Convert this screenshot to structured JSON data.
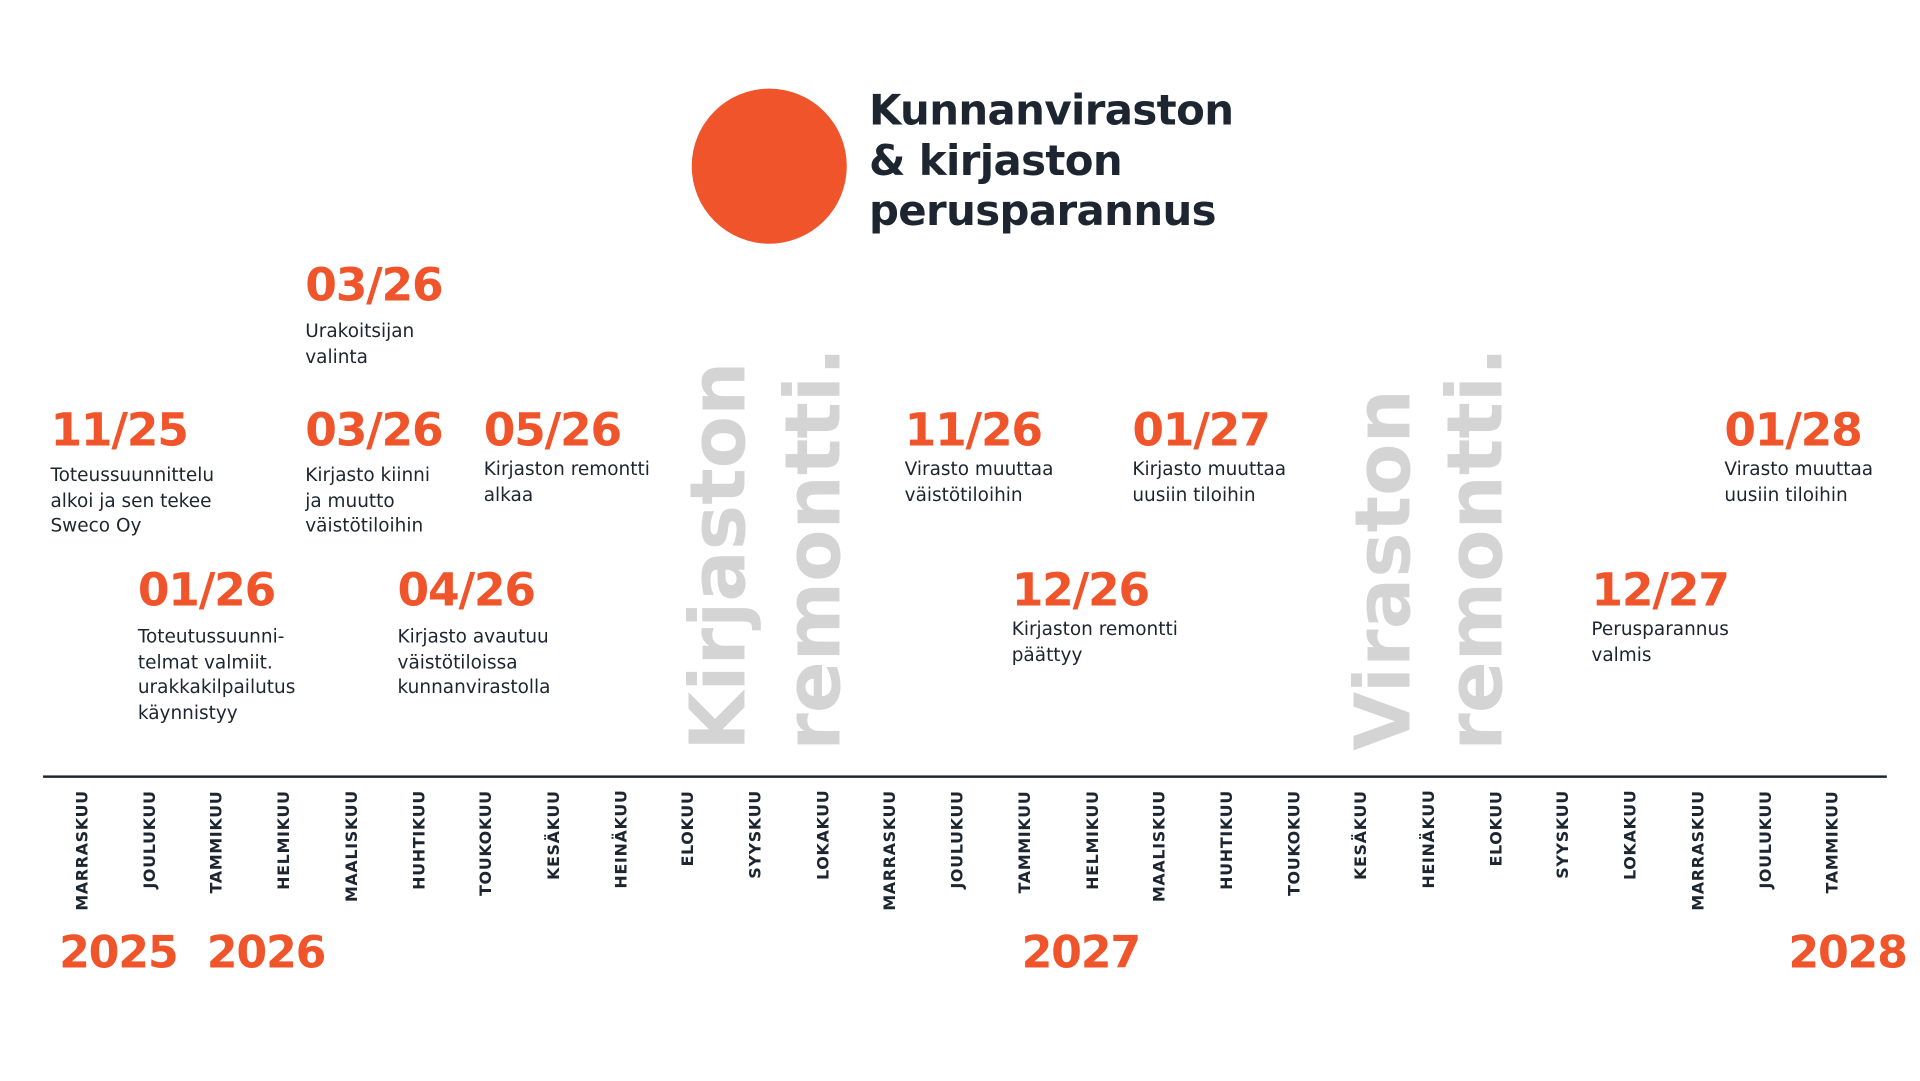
{
  "title": [
    "Kunnanviraston",
    "& kirjaston",
    "perusparannus"
  ],
  "colors": {
    "accent": "#f0542a",
    "text": "#1c2530",
    "phase": "#d4d4d4"
  },
  "events": [
    {
      "date": "11/25",
      "lines": [
        "Toteussuunnittelu",
        "alkoi ja sen tekee",
        "Sweco Oy"
      ]
    },
    {
      "date": "01/26",
      "lines": [
        "Toteutussuunni-",
        "telmat valmiit.",
        "urakkakilpailutus",
        "käynnistyy"
      ]
    },
    {
      "date": "03/26",
      "lines": [
        "Urakoitsijan",
        "valinta"
      ]
    },
    {
      "date": "03/26",
      "lines": [
        "Kirjasto kiinni",
        "ja muutto",
        "väistötiloihin"
      ]
    },
    {
      "date": "04/26",
      "lines": [
        "Kirjasto avautuu",
        "väistötiloissa",
        "kunnanvirastolla"
      ]
    },
    {
      "date": "05/26",
      "lines": [
        "Kirjaston remontti",
        "alkaa"
      ]
    },
    {
      "date": "11/26",
      "lines": [
        "Virasto muuttaa",
        "väistötiloihin"
      ]
    },
    {
      "date": "12/26",
      "lines": [
        "Kirjaston remontti",
        "päättyy"
      ]
    },
    {
      "date": "01/27",
      "lines": [
        "Kirjasto muuttaa",
        "uusiin tiloihin"
      ]
    },
    {
      "date": "12/27",
      "lines": [
        "Perusparannus",
        "valmis"
      ]
    },
    {
      "date": "01/28",
      "lines": [
        "Virasto muuttaa",
        "uusiin tiloihin"
      ]
    }
  ],
  "phases": [
    {
      "lines": [
        "Kirjaston",
        "remontti."
      ]
    },
    {
      "lines": [
        "Viraston",
        "remontti."
      ]
    }
  ],
  "months": [
    "MARRASKUU",
    "JOULUKUU",
    "TAMMIKUU",
    "HELMIKUU",
    "MAALISKUU",
    "HUHTIKUU",
    "TOUKOKUU",
    "KESÄKUU",
    "HEINÄKUU",
    "ELOKUU",
    "SYYSKUU",
    "LOKAKUU",
    "MARRASKUU",
    "JOULUKUU",
    "TAMMIKUU",
    "HELMIKUU",
    "MAALISKUU",
    "HUHTIKUU",
    "TOUKOKUU",
    "KESÄKUU",
    "HEINÄKUU",
    "ELOKUU",
    "SYYSKUU",
    "LOKAKUU",
    "MARRASKUU",
    "JOULUKUU",
    "TAMMIKUU"
  ],
  "years": [
    "2025",
    "2026",
    "2027",
    "2028"
  ]
}
